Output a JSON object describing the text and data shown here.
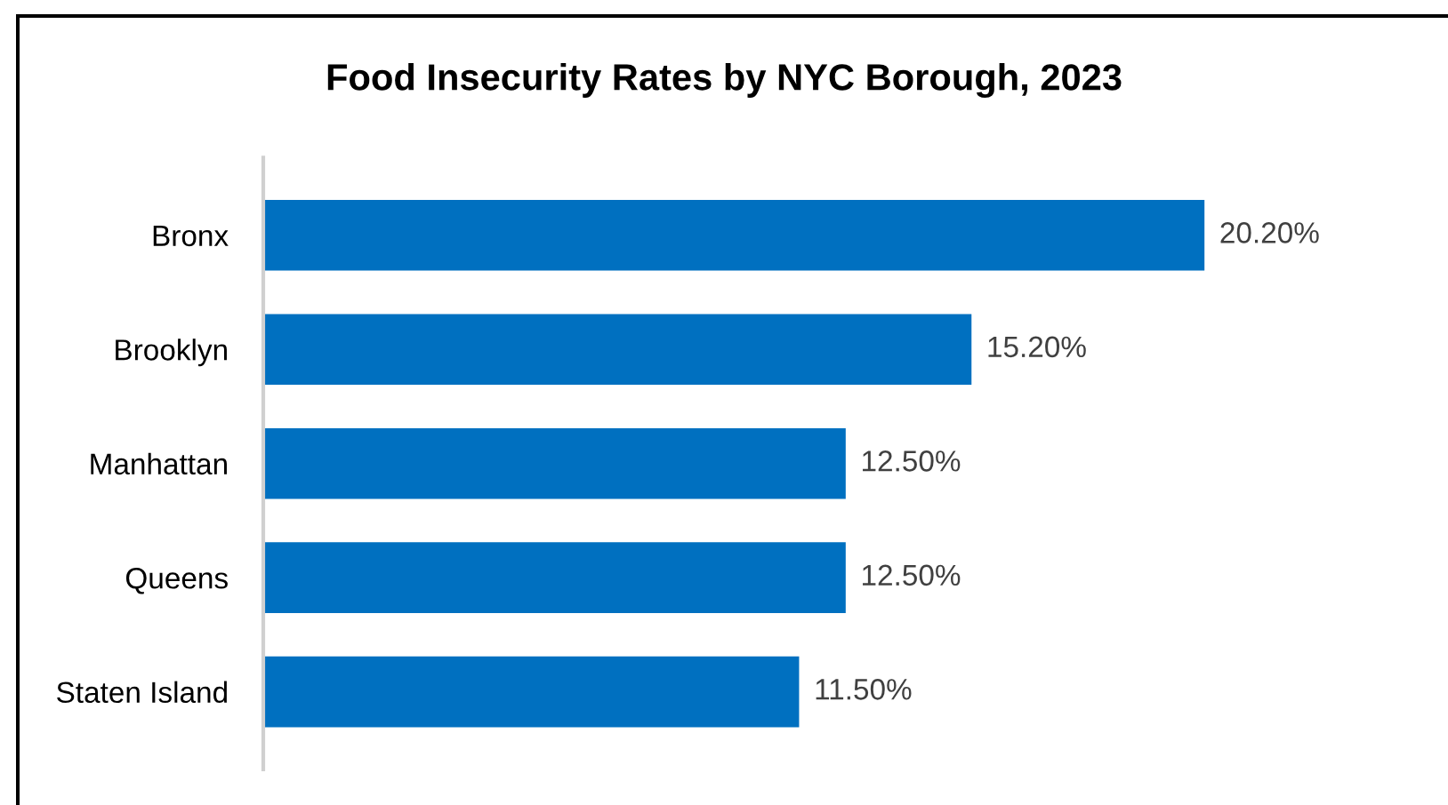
{
  "chart_data": {
    "type": "bar",
    "orientation": "horizontal",
    "title": "Food Insecurity Rates by NYC Borough, 2023",
    "categories": [
      "Bronx",
      "Brooklyn",
      "Manhattan",
      "Queens",
      "Staten Island"
    ],
    "values": [
      20.2,
      15.2,
      12.5,
      12.5,
      11.5
    ],
    "value_labels": [
      "20.20%",
      "15.20%",
      "12.50%",
      "12.50%",
      "11.50%"
    ],
    "color": "#0070c0",
    "grid": false,
    "legend": false
  }
}
